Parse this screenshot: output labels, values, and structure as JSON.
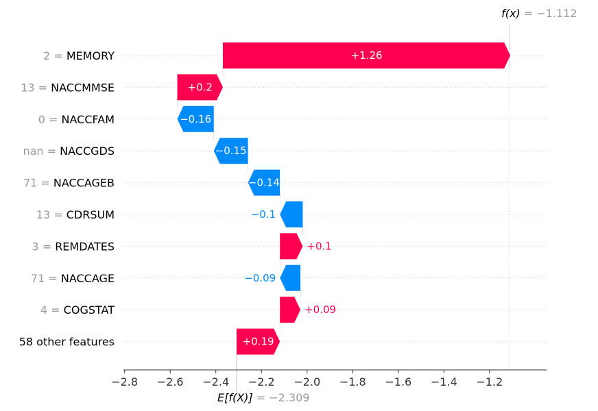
{
  "chart_data": {
    "type": "waterfall",
    "base_value": -2.309,
    "final_value": -1.112,
    "base_label": {
      "fn": "E[f(X)]",
      "eq": " = −2.309"
    },
    "final_label": {
      "fn": "f(x)",
      "eq": " = −1.112"
    },
    "features": [
      {
        "value": "2",
        "name": "MEMORY",
        "contribution": 1.26,
        "label": "+1.26"
      },
      {
        "value": "13",
        "name": "NACCMMSE",
        "contribution": 0.2,
        "label": "+0.2"
      },
      {
        "value": "0",
        "name": "NACCFAM",
        "contribution": -0.16,
        "label": "−0.16"
      },
      {
        "value": "nan",
        "name": "NACCGDS",
        "contribution": -0.15,
        "label": "−0.15"
      },
      {
        "value": "71",
        "name": "NACCAGEB",
        "contribution": -0.14,
        "label": "−0.14"
      },
      {
        "value": "13",
        "name": "CDRSUM",
        "contribution": -0.1,
        "label": "−0.1"
      },
      {
        "value": "3",
        "name": "REMDATES",
        "contribution": 0.1,
        "label": "+0.1"
      },
      {
        "value": "71",
        "name": "NACCAGE",
        "contribution": -0.09,
        "label": "−0.09"
      },
      {
        "value": "4",
        "name": "COGSTAT",
        "contribution": 0.09,
        "label": "+0.09"
      },
      {
        "value": "",
        "name": "58 other features",
        "contribution": 0.19,
        "label": "+0.19"
      }
    ],
    "x_ticks": [
      {
        "value": -2.8,
        "label": "−2.8"
      },
      {
        "value": -2.6,
        "label": "−2.6"
      },
      {
        "value": -2.4,
        "label": "−2.4"
      },
      {
        "value": -2.2,
        "label": "−2.2"
      },
      {
        "value": -2.0,
        "label": "−2.0"
      },
      {
        "value": -1.8,
        "label": "−1.8"
      },
      {
        "value": -1.6,
        "label": "−1.6"
      },
      {
        "value": -1.4,
        "label": "−1.4"
      },
      {
        "value": -1.2,
        "label": "−1.2"
      }
    ],
    "xlim": [
      -2.805,
      -0.95
    ],
    "colors": {
      "positive": "#ff0051",
      "negative": "#008bfb"
    }
  }
}
